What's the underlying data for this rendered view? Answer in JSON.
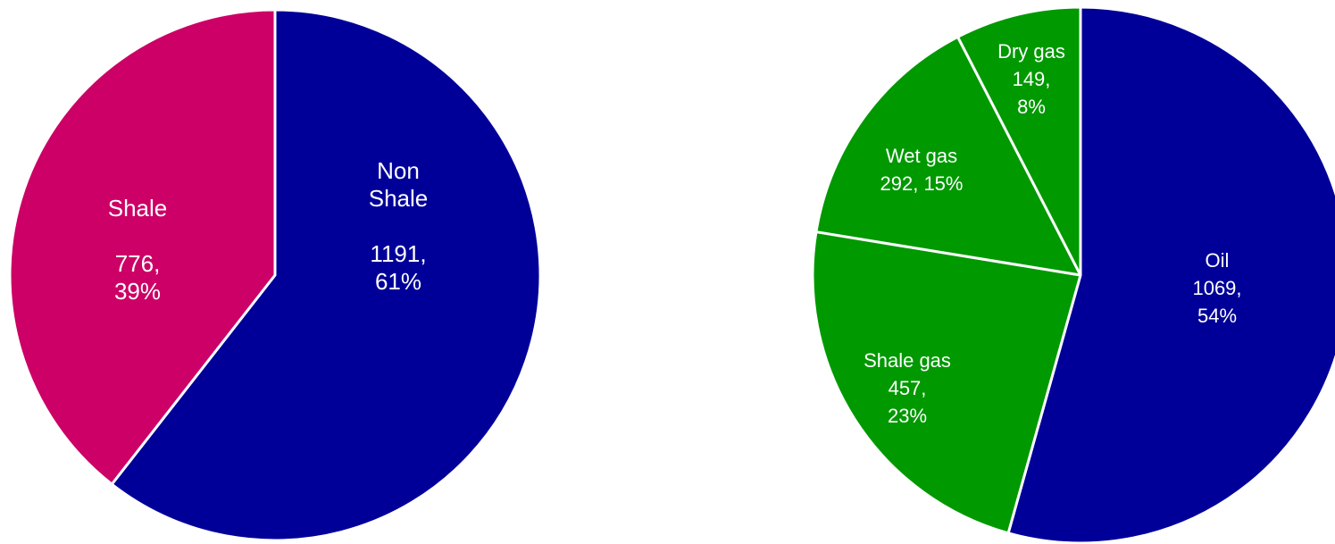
{
  "colors": {
    "shale": "#cc0066",
    "non_shale": "#000099",
    "oil": "#000099",
    "gas": "#009900",
    "separator": "#ffffff"
  },
  "chart_data": [
    {
      "type": "pie",
      "title": "",
      "start_angle_deg": 0,
      "direction": "clockwise",
      "slices": [
        {
          "label": "Non Shale",
          "value": 1191,
          "percent": "61%",
          "color": "#000099",
          "label_lines": [
            "Non",
            "Shale",
            "",
            "1191,",
            "61%"
          ]
        },
        {
          "label": "Shale",
          "value": 776,
          "percent": "39%",
          "color": "#cc0066",
          "label_lines": [
            "Shale",
            "",
            "776,",
            "39%"
          ]
        }
      ]
    },
    {
      "type": "pie",
      "title": "",
      "start_angle_deg": 0,
      "direction": "clockwise",
      "slices": [
        {
          "label": "Oil",
          "value": 1069,
          "percent": "54%",
          "color": "#000099",
          "label_lines": [
            "Oil",
            "1069,",
            "54%"
          ]
        },
        {
          "label": "Shale gas",
          "value": 457,
          "percent": "23%",
          "color": "#009900",
          "label_lines": [
            "Shale gas",
            "457,",
            "23%"
          ]
        },
        {
          "label": "Wet gas",
          "value": 292,
          "percent": "15%",
          "color": "#009900",
          "label_lines": [
            "Wet gas",
            "292, 15%"
          ]
        },
        {
          "label": "Dry gas",
          "value": 149,
          "percent": "8%",
          "color": "#009900",
          "label_lines": [
            "Dry gas",
            "149,",
            "8%"
          ]
        }
      ]
    }
  ]
}
